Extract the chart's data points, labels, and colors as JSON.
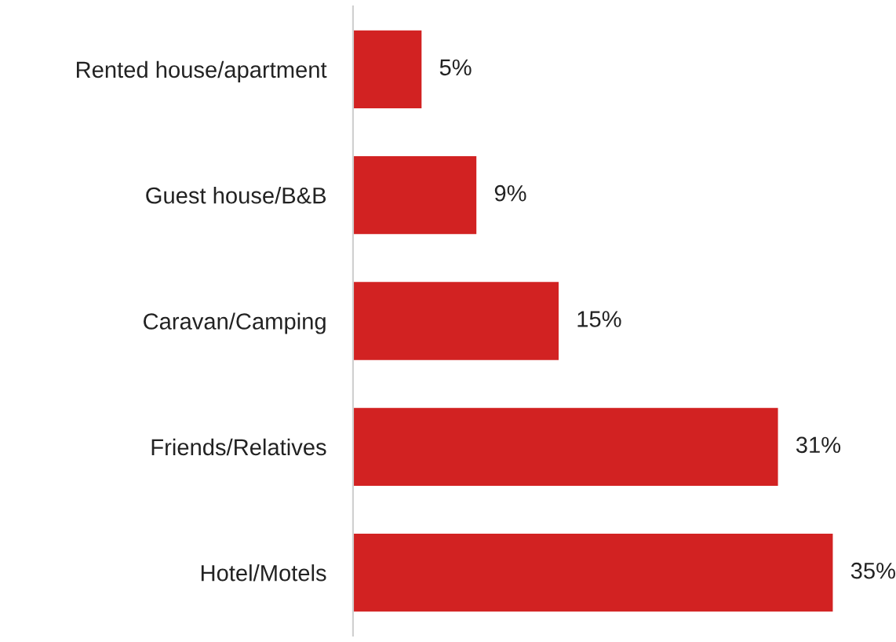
{
  "chart_data": {
    "type": "bar",
    "orientation": "horizontal",
    "categories": [
      "Rented house/apartment",
      "Guest house/B&B",
      "Caravan/Camping",
      "Friends/Relatives",
      "Hotel/Motels"
    ],
    "values": [
      5,
      9,
      15,
      31,
      35
    ],
    "value_labels": [
      "5%",
      "9%",
      "15%",
      "31%",
      "35%"
    ],
    "color": "#d22222",
    "grid": false,
    "legend": false
  }
}
